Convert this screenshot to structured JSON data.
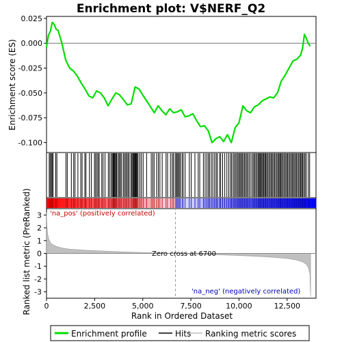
{
  "title": "Enrichment plot: V$NERF_Q2",
  "colors": {
    "enrichment_line": "#00dd00",
    "hits": "#000000",
    "metric_fill": "#c0c0c0",
    "pos_label": "#cc0000",
    "neg_label": "#0000bb",
    "zero_line": "#999999"
  },
  "legend": {
    "items": [
      {
        "label": "Enrichment profile",
        "color": "#00dd00"
      },
      {
        "label": "Hits",
        "color": "#000000"
      },
      {
        "label": "Ranking metric scores",
        "color": "#c0c0c0"
      }
    ]
  },
  "chart_data": [
    {
      "type": "line",
      "name": "enrichment-profile",
      "ylabel": "Enrichment score (ES)",
      "xlim": [
        0,
        14000
      ],
      "ylim": [
        -0.11,
        0.027
      ],
      "yticks": [
        0.025,
        0.0,
        -0.025,
        -0.05,
        -0.075,
        -0.1
      ],
      "ytick_labels": [
        "0.025",
        "0.000",
        "-0.025",
        "-0.050",
        "-0.075",
        "-0.100"
      ],
      "grid": false,
      "x": [
        0,
        100,
        200,
        300,
        400,
        500,
        600,
        800,
        1000,
        1200,
        1400,
        1600,
        1800,
        2000,
        2200,
        2400,
        2600,
        2800,
        3000,
        3200,
        3400,
        3600,
        3800,
        4000,
        4200,
        4400,
        4600,
        4800,
        5000,
        5200,
        5400,
        5600,
        5800,
        6000,
        6200,
        6400,
        6600,
        6800,
        7000,
        7200,
        7400,
        7600,
        7800,
        8000,
        8200,
        8400,
        8600,
        8800,
        9000,
        9200,
        9400,
        9600,
        9800,
        10000,
        10200,
        10400,
        10600,
        10800,
        11000,
        11200,
        11400,
        11600,
        11800,
        12000,
        12200,
        12400,
        12600,
        12800,
        13000,
        13200,
        13300,
        13400,
        13500,
        13600,
        13700
      ],
      "y": [
        -0.004,
        0.008,
        0.012,
        0.021,
        0.019,
        0.014,
        0.013,
        0.0,
        -0.017,
        -0.025,
        -0.028,
        -0.033,
        -0.04,
        -0.046,
        -0.053,
        -0.055,
        -0.048,
        -0.05,
        -0.055,
        -0.063,
        -0.056,
        -0.05,
        -0.052,
        -0.057,
        -0.062,
        -0.061,
        -0.044,
        -0.046,
        -0.052,
        -0.058,
        -0.064,
        -0.07,
        -0.063,
        -0.068,
        -0.072,
        -0.066,
        -0.07,
        -0.069,
        -0.067,
        -0.074,
        -0.073,
        -0.071,
        -0.078,
        -0.084,
        -0.083,
        -0.088,
        -0.1,
        -0.096,
        -0.094,
        -0.099,
        -0.092,
        -0.1,
        -0.085,
        -0.08,
        -0.063,
        -0.068,
        -0.07,
        -0.064,
        -0.062,
        -0.058,
        -0.056,
        -0.054,
        -0.055,
        -0.05,
        -0.038,
        -0.032,
        -0.025,
        -0.018,
        -0.016,
        -0.012,
        -0.005,
        0.009,
        0.005,
        0.0,
        -0.003
      ]
    },
    {
      "type": "bar",
      "name": "hits",
      "xlim": [
        0,
        14000
      ],
      "hit_band_positions": [
        140,
        190,
        250,
        290,
        340,
        480,
        540,
        1010,
        1080,
        1290,
        1410,
        1480,
        1630,
        1780,
        1850,
        1990,
        2050,
        2230,
        2330,
        2490,
        2550,
        2620,
        2680,
        2740,
        2870,
        2940,
        3040,
        3210,
        3280,
        3360,
        3420,
        3460,
        3500,
        3530,
        3580,
        3620,
        3660,
        3740,
        3790,
        3850,
        3910,
        4000,
        4060,
        4120,
        4180,
        4240,
        4300,
        4390,
        4440,
        4490,
        4520,
        4560,
        4600,
        4640,
        4680,
        4710,
        4760,
        4850,
        4930,
        5020,
        5200,
        5440,
        5520,
        5590,
        5720,
        5810,
        5890,
        6010,
        6210,
        6290,
        6440,
        6530,
        6590,
        6680,
        6740,
        6790,
        6840,
        6900,
        6950,
        7040,
        7100,
        7200,
        7420,
        7520,
        7710,
        7880,
        7960,
        8150,
        8240,
        8330,
        8410,
        8470,
        8560,
        8640,
        8730,
        8810,
        8870,
        8990,
        9050,
        9150,
        9260,
        9370,
        9470,
        9560,
        9620,
        9700,
        9760,
        9830,
        9890,
        9950,
        10010,
        10060,
        10120,
        10170,
        10230,
        10290,
        10350,
        10410,
        10470,
        10540,
        10620,
        10700,
        10760,
        10820,
        10880,
        10940,
        11000,
        11050,
        11090,
        11140,
        11190,
        11240,
        11290,
        11340,
        11390,
        11440,
        11500,
        11560,
        11620,
        11680,
        11730,
        11790,
        11850,
        11910,
        11970,
        12030,
        12080,
        12130,
        12180,
        12230,
        12290,
        12350,
        12410,
        12470,
        12520,
        12580,
        12640,
        12700,
        12760,
        12810,
        12870,
        12930,
        12980,
        13040,
        13100,
        13160,
        13210,
        13260,
        13310,
        13370,
        13430,
        13490,
        13600,
        13670
      ]
    },
    {
      "type": "area",
      "name": "ranked-list-metric",
      "xlabel": "Rank in Ordered Dataset",
      "ylabel": "Ranked list metric (PreRanked)",
      "xlim": [
        0,
        14000
      ],
      "ylim": [
        -3.5,
        3.5
      ],
      "xticks": [
        0,
        2500,
        5000,
        7500,
        10000,
        12500
      ],
      "xtick_labels": [
        "0",
        "2,500",
        "5,000",
        "7,500",
        "10,000",
        "12,500"
      ],
      "yticks": [
        3,
        2,
        1,
        0,
        -1,
        -2,
        -3
      ],
      "ytick_labels": [
        "3",
        "2",
        "1",
        "0",
        "-1",
        "-2",
        "-3"
      ],
      "x": [
        0,
        20,
        60,
        120,
        200,
        300,
        500,
        800,
        1200,
        2000,
        3000,
        4000,
        5000,
        6000,
        6700,
        7500,
        8500,
        9500,
        10500,
        11500,
        12000,
        12500,
        13000,
        13300,
        13500,
        13600,
        13680,
        13720
      ],
      "y": [
        3.2,
        2.2,
        1.5,
        1.1,
        0.85,
        0.7,
        0.55,
        0.42,
        0.33,
        0.25,
        0.18,
        0.12,
        0.07,
        0.03,
        0.0,
        -0.04,
        -0.09,
        -0.14,
        -0.2,
        -0.28,
        -0.33,
        -0.4,
        -0.52,
        -0.65,
        -0.85,
        -1.1,
        -1.6,
        -3.4
      ],
      "annotations": {
        "pos": "'na_pos' (positively correlated)",
        "neg": "'na_neg' (negatively correlated)",
        "zero_cross": "Zero cross at 6700"
      },
      "zero_cross": 6700
    }
  ]
}
